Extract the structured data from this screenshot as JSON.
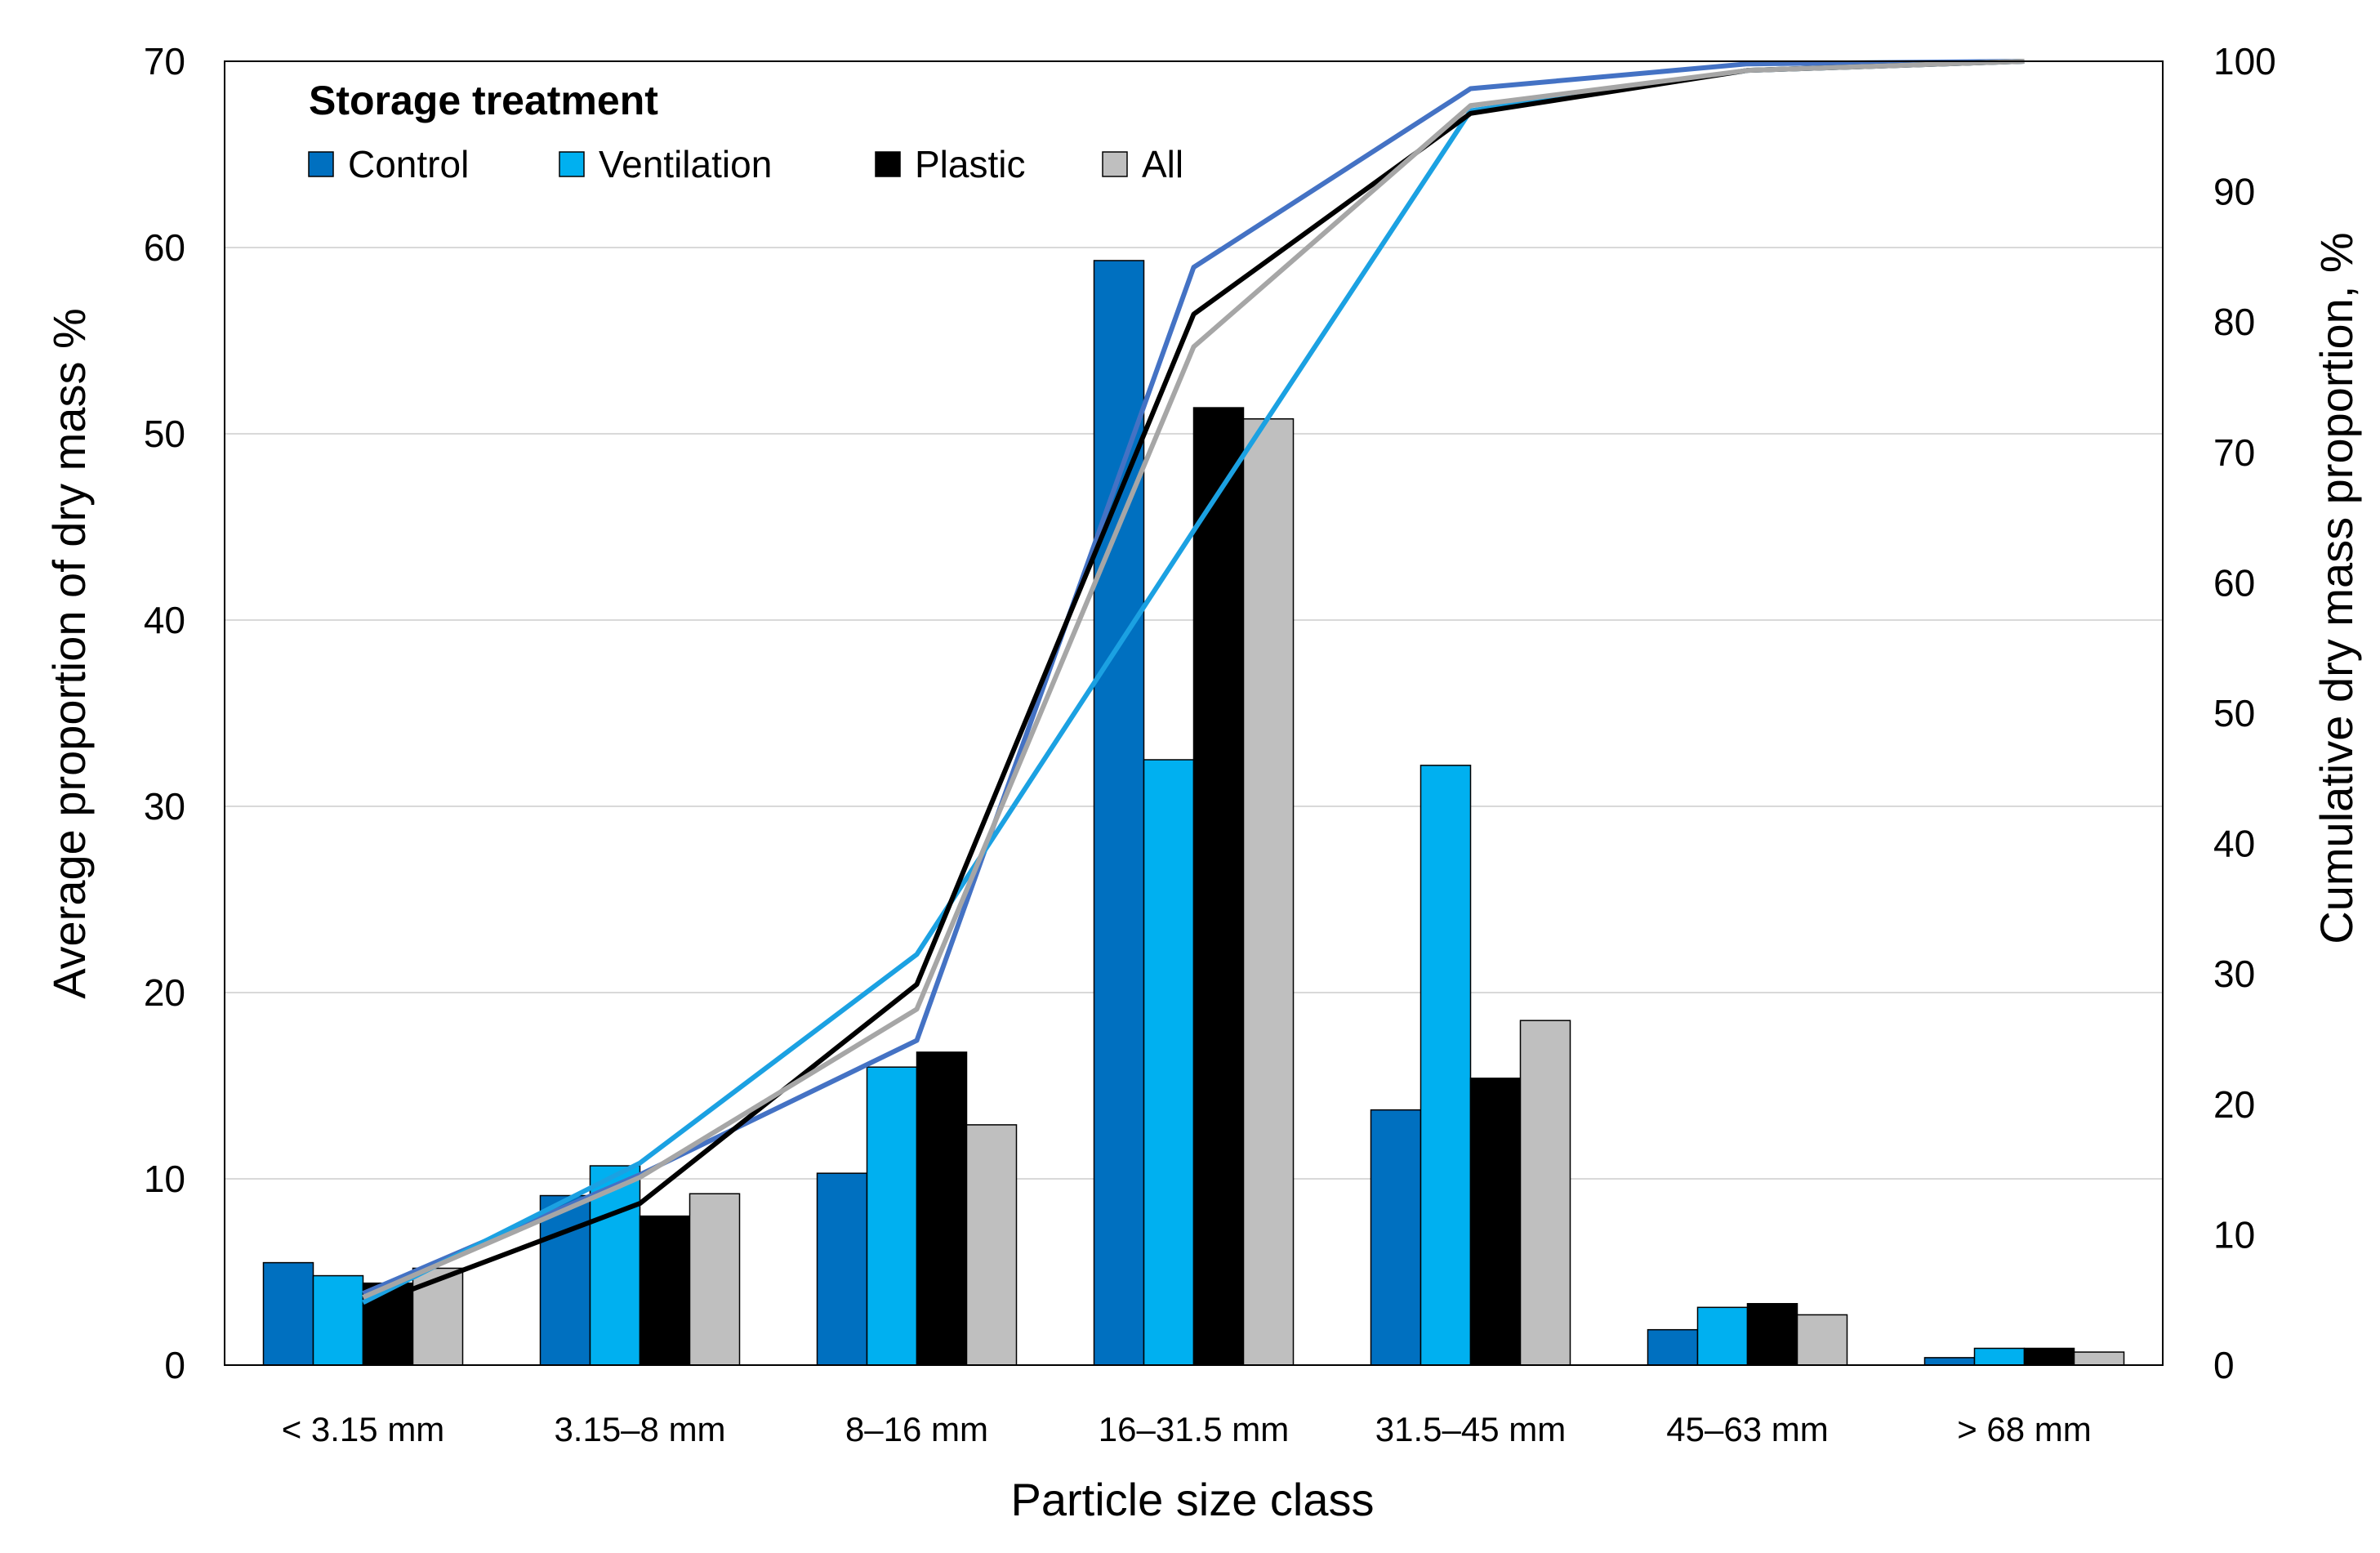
{
  "chart_data": {
    "type": "bar",
    "categories": [
      "< 3.15 mm",
      "3.15–8 mm",
      "8–16 mm",
      "16–31.5 mm",
      "31.5–45 mm",
      "45–63 mm",
      "> 68 mm"
    ],
    "series": [
      {
        "name": "Control",
        "color": "#0070C0",
        "values": [
          5.5,
          9.1,
          10.3,
          59.3,
          13.7,
          1.9,
          0.4
        ]
      },
      {
        "name": "Ventilation",
        "color": "#00B0F0",
        "values": [
          4.8,
          10.7,
          16.0,
          32.5,
          32.2,
          3.1,
          0.9
        ]
      },
      {
        "name": "Plastic",
        "color": "#000000",
        "values": [
          4.4,
          8.0,
          16.8,
          51.4,
          15.4,
          3.3,
          0.9
        ]
      },
      {
        "name": "All",
        "color": "#BFBFBF",
        "values": [
          5.2,
          9.2,
          12.9,
          50.8,
          18.5,
          2.7,
          0.7
        ]
      }
    ],
    "cumulative_series": [
      {
        "name": "Control",
        "color": "#4472C4",
        "values": [
          5.5,
          14.6,
          24.9,
          84.2,
          97.9,
          99.8,
          100
        ]
      },
      {
        "name": "Ventilation",
        "color": "#1BA1E2",
        "values": [
          4.8,
          15.5,
          31.5,
          64.0,
          96.2,
          99.3,
          100
        ]
      },
      {
        "name": "Plastic",
        "color": "#000000",
        "values": [
          4.4,
          12.4,
          29.2,
          80.6,
          96.0,
          99.3,
          100
        ]
      },
      {
        "name": "All",
        "color": "#A6A6A6",
        "values": [
          5.2,
          14.4,
          27.3,
          78.1,
          96.6,
          99.3,
          100
        ]
      }
    ],
    "title": "",
    "xlabel": "Particle size class",
    "ylabel": "Average proportion of dry mass %",
    "y2label": "Cumulative dry mass proportion, %",
    "ylim": [
      0,
      70
    ],
    "yticks": [
      0,
      10,
      20,
      30,
      40,
      50,
      60,
      70
    ],
    "y2lim": [
      0,
      100
    ],
    "y2ticks": [
      0,
      10,
      20,
      30,
      40,
      50,
      60,
      70,
      80,
      90,
      100
    ],
    "grid": true,
    "legend": {
      "title": "Storage treatment",
      "position": "top-left"
    }
  }
}
